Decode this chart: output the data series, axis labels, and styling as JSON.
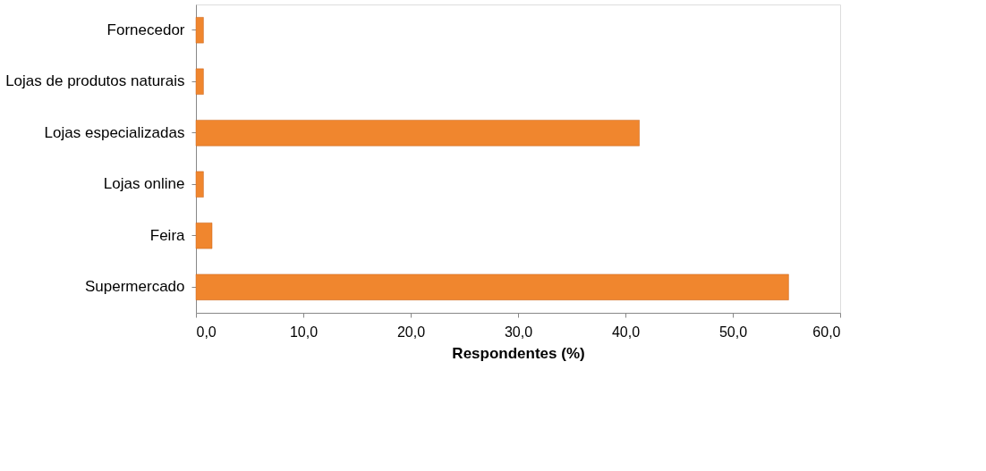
{
  "chart_data": {
    "type": "bar",
    "orientation": "horizontal",
    "xlabel": "Respondentes (%)",
    "categories": [
      "Fornecedor",
      "Lojas de produtos naturais",
      "Lojas especializadas",
      "Lojas online",
      "Feira",
      "Supermercado"
    ],
    "values": [
      0.7,
      0.7,
      41.3,
      0.7,
      1.5,
      55.2
    ],
    "color": "#f0862e",
    "xlim": [
      0,
      60
    ],
    "xticks": [
      {
        "value": 0,
        "label": "0,0"
      },
      {
        "value": 10,
        "label": "10,0"
      },
      {
        "value": 20,
        "label": "20,0"
      },
      {
        "value": 30,
        "label": "30,0"
      },
      {
        "value": 40,
        "label": "40,0"
      },
      {
        "value": 50,
        "label": "50,0"
      },
      {
        "value": 60,
        "label": "60,0"
      }
    ],
    "grid": false
  }
}
